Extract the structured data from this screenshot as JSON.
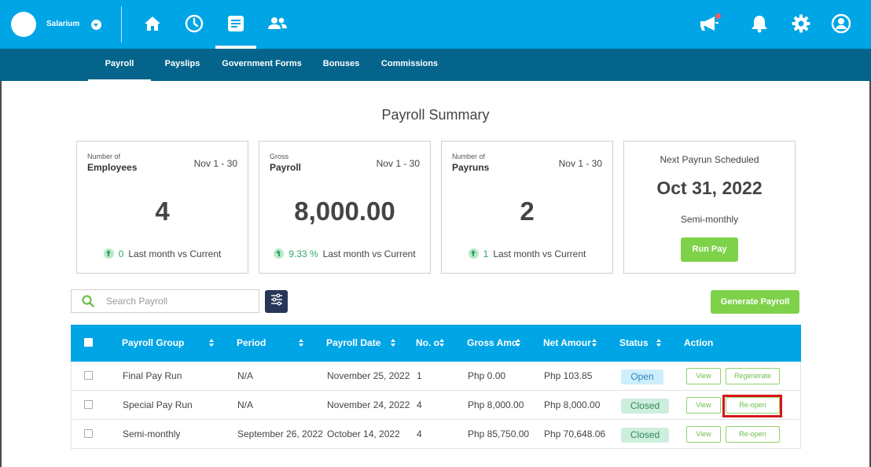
{
  "header": {
    "company_name": "Salarium",
    "nav_icons": [
      "home-icon",
      "clock-icon",
      "document-icon",
      "people-icon"
    ],
    "right_icons": [
      "megaphone-icon",
      "bell-icon",
      "gear-icon",
      "user-icon"
    ]
  },
  "subnav": {
    "items": [
      {
        "label": "Payroll",
        "active": true
      },
      {
        "label": "Payslips",
        "active": false
      },
      {
        "label": "Government Forms",
        "active": false
      },
      {
        "label": "Bonuses",
        "active": false
      },
      {
        "label": "Commissions",
        "active": false
      }
    ]
  },
  "page_title": "Payroll Summary",
  "cards": [
    {
      "small": "Number of",
      "label": "Employees",
      "range": "Nov 1 - 30",
      "value": "4",
      "delta": "0",
      "footer": "Last month vs Current"
    },
    {
      "small": "Gross",
      "label": "Payroll",
      "range": "Nov 1 - 30",
      "value": "8,000.00",
      "delta": "9.33 %",
      "footer": "Last month vs Current"
    },
    {
      "small": "Number of",
      "label": "Payruns",
      "range": "Nov 1 - 30",
      "value": "2",
      "delta": "1",
      "footer": "Last month vs Current"
    }
  ],
  "next_payrun": {
    "title": "Next Payrun Scheduled",
    "date": "Oct 31, 2022",
    "frequency": "Semi-monthly",
    "button": "Run Pay"
  },
  "search": {
    "placeholder": "Search Payroll"
  },
  "generate_button": "Generate Payroll",
  "table": {
    "headers": [
      "Payroll Group",
      "Period",
      "Payroll Date",
      "No. o",
      "Gross Amo",
      "Net Amour",
      "Status",
      "Action"
    ],
    "rows": [
      {
        "group": "Final Pay Run",
        "period": "N/A",
        "date": "November 25, 2022",
        "no": "1",
        "gross": "Php 0.00",
        "net": "Php 103.85",
        "status": "Open",
        "actions": [
          "View",
          "Regenerate"
        ]
      },
      {
        "group": "Special Pay Run",
        "period": "N/A",
        "date": "November 24, 2022",
        "no": "4",
        "gross": "Php 8,000.00",
        "net": "Php 8,000.00",
        "status": "Closed",
        "actions": [
          "View",
          "Re-open"
        ]
      },
      {
        "group": "Semi-monthly",
        "period": "September 26, 2022",
        "date": "October 14, 2022",
        "no": "4",
        "gross": "Php 85,750.00",
        "net": "Php 70,648.06",
        "status": "Closed",
        "actions": [
          "View",
          "Re-open"
        ]
      }
    ]
  },
  "colors": {
    "primary": "#00a5e5",
    "subnav": "#04648c",
    "accent_green": "#7ed24a",
    "highlight": "#d9151b"
  }
}
